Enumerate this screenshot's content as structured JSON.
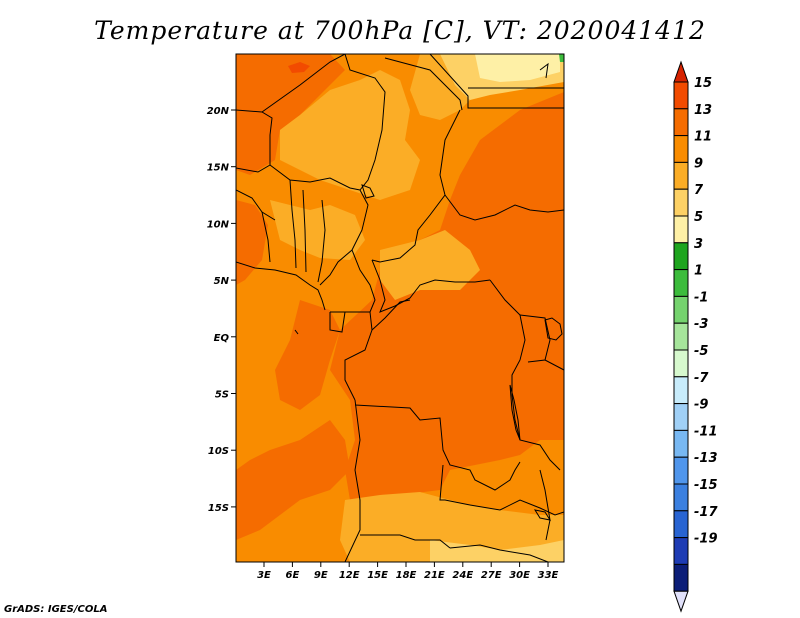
{
  "title": "Temperature at 700hPa [C], VT: 2020041412",
  "credit": "GrADS: IGES/COLA",
  "lat_labels": [
    "20N",
    "15N",
    "10N",
    "5N",
    "EQ",
    "5S",
    "10S",
    "15S"
  ],
  "lon_labels": [
    "3E",
    "6E",
    "9E",
    "12E",
    "15E",
    "18E",
    "21E",
    "24E",
    "27E",
    "30E",
    "33E"
  ],
  "colorbar": {
    "labels": [
      "15",
      "13",
      "11",
      "9",
      "7",
      "5",
      "3",
      "1",
      "-1",
      "-3",
      "-5",
      "-7",
      "-9",
      "-11",
      "-13",
      "-15",
      "-17",
      "-19"
    ],
    "colors": [
      "#d62200",
      "#f24b00",
      "#f56c00",
      "#f98c00",
      "#fbad26",
      "#fdd165",
      "#fef0a6",
      "#1ea51e",
      "#3cbc3c",
      "#75d36e",
      "#a6e59b",
      "#d7f9ce",
      "#c8ecfb",
      "#a0d0f6",
      "#78b8f2",
      "#5096ec",
      "#3b80e0",
      "#2864d2",
      "#1e3cb4",
      "#0c1e78",
      "#e1e1fa"
    ],
    "top_arrow_color": "#d62200",
    "bottom_arrow_color": "#e1e1fa"
  },
  "field_colors": {
    "orange_11_13": "#f56c00",
    "orange_9_11": "#f98c00",
    "light_7_9": "#fbad26",
    "pale_5_7": "#fdd165",
    "cream_3_5": "#fef0a6",
    "red_13_15": "#f24b00",
    "green_1_3": "#3cbc3c"
  }
}
